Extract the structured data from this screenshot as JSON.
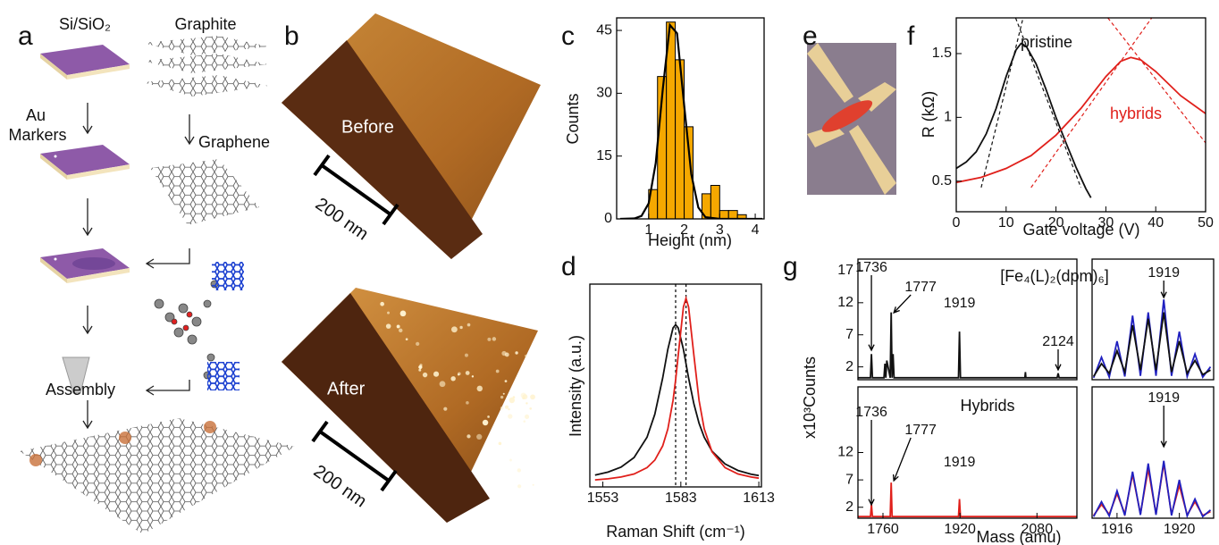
{
  "panel_labels": [
    "a",
    "b",
    "c",
    "d",
    "e",
    "f",
    "g"
  ],
  "diagram_a": {
    "substrate": "Si/SiO₂",
    "graphite": "Graphite",
    "au": "Au",
    "markers": "Markers",
    "graphene": "Graphene",
    "assembly": "Assembly"
  },
  "afm_b": {
    "before": "Before",
    "after": "After",
    "scale_bar": "200 nm"
  },
  "chart_data": [
    {
      "type": "histogram",
      "xlabel": "Height (nm)",
      "ylabel": "Counts",
      "bins": [
        1,
        1.25,
        1.5,
        1.75,
        2,
        2.25,
        2.5,
        2.75,
        3,
        3.25,
        3.5,
        3.75,
        4
      ],
      "values": [
        7,
        34,
        47,
        38,
        22,
        0,
        6,
        8,
        2,
        2,
        1,
        0
      ],
      "color": "#f5a800",
      "fit": {
        "x": [
          0.2,
          0.6,
          0.8,
          1.0,
          1.2,
          1.4,
          1.6,
          1.8,
          2.0,
          2.2,
          2.4,
          2.6,
          3.0,
          4.2
        ],
        "values": [
          0,
          0.1,
          0.7,
          3.7,
          13.3,
          31.1,
          46.3,
          44.3,
          27.2,
          10.7,
          2.7,
          0.4,
          0,
          0
        ],
        "color": "#000000"
      },
      "xlim": [
        0.1,
        4.25
      ],
      "ylim": [
        0,
        48
      ],
      "xticks": [
        1,
        2,
        3,
        4
      ],
      "yticks": [
        0,
        15,
        30,
        45
      ]
    },
    {
      "type": "line",
      "xlabel": "Raman Shift (cm⁻¹)",
      "ylabel": "Intensity (a.u.)",
      "series": [
        {
          "color": "#111111",
          "x": [
            1550,
            1555,
            1560,
            1565,
            1570,
            1573,
            1576,
            1578,
            1580,
            1581,
            1582,
            1584,
            1585,
            1586,
            1588,
            1590,
            1592,
            1595,
            1600,
            1605,
            1610,
            1613
          ],
          "values": [
            0.058,
            0.073,
            0.098,
            0.145,
            0.245,
            0.358,
            0.537,
            0.679,
            0.784,
            0.8,
            0.784,
            0.679,
            0.608,
            0.537,
            0.41,
            0.314,
            0.245,
            0.176,
            0.113,
            0.081,
            0.063,
            0.056
          ]
        },
        {
          "color": "#e0201b",
          "x": [
            1550,
            1555,
            1560,
            1565,
            1570,
            1573,
            1576,
            1578,
            1580,
            1581,
            1582,
            1584,
            1585,
            1586,
            1588,
            1590,
            1592,
            1595,
            1600,
            1605,
            1610,
            1613
          ],
          "values": [
            0.035,
            0.04,
            0.049,
            0.064,
            0.095,
            0.132,
            0.202,
            0.286,
            0.427,
            0.528,
            0.65,
            0.887,
            0.93,
            0.887,
            0.65,
            0.427,
            0.286,
            0.173,
            0.095,
            0.064,
            0.049,
            0.043
          ]
        }
      ],
      "reference_lines": [
        1581,
        1585
      ],
      "xlim": [
        1548,
        1614
      ],
      "ylim": [
        0,
        1
      ],
      "xticks": [
        1553,
        1583,
        1613
      ]
    },
    {
      "type": "line",
      "xlabel": "Gate voltage (V)",
      "ylabel": "R (kΩ)",
      "series": [
        {
          "name": "pristine",
          "color": "#111111",
          "x": [
            0,
            2,
            4,
            6,
            8,
            10,
            12,
            13,
            14,
            16,
            18,
            20,
            22,
            24,
            26,
            27
          ],
          "values": [
            0.6,
            0.65,
            0.73,
            0.87,
            1.07,
            1.32,
            1.53,
            1.58,
            1.56,
            1.42,
            1.22,
            1.0,
            0.8,
            0.61,
            0.44,
            0.37
          ]
        },
        {
          "name": "hybrids",
          "color": "#e0201b",
          "x": [
            0,
            5,
            10,
            15,
            20,
            25,
            30,
            33,
            35,
            37,
            40,
            45,
            50
          ],
          "values": [
            0.49,
            0.53,
            0.6,
            0.7,
            0.86,
            1.07,
            1.32,
            1.44,
            1.47,
            1.45,
            1.36,
            1.17,
            1.03
          ]
        },
        {
          "color": "#111111",
          "dashed": true,
          "x": [
            5,
            13.4
          ],
          "values": [
            0.45,
            1.78
          ]
        },
        {
          "color": "#111111",
          "dashed": true,
          "x": [
            11.9,
            25
          ],
          "values": [
            1.78,
            0.45
          ]
        },
        {
          "color": "#e0201b",
          "dashed": true,
          "x": [
            15,
            39.2
          ],
          "values": [
            0.45,
            1.78
          ]
        },
        {
          "color": "#e0201b",
          "dashed": true,
          "x": [
            30.4,
            50
          ],
          "values": [
            1.78,
            0.8
          ]
        }
      ],
      "xlim": [
        0,
        50
      ],
      "ylim": [
        0.26,
        1.78
      ],
      "xticks": [
        0,
        10,
        20,
        30,
        40,
        50
      ],
      "yticks": [
        0.5,
        1,
        1.5
      ]
    },
    {
      "type": "line",
      "title": "[Fe₄(L)₂(dpm)₆]",
      "ylabel": "x10³Counts",
      "series": [
        {
          "color": "#111111",
          "x": [
            1708,
            1734,
            1736,
            1738,
            1762,
            1764,
            1766,
            1768,
            1775,
            1777,
            1779,
            1781,
            1783,
            1917,
            1919,
            1921,
            2055,
            2056,
            2057,
            2122,
            2124,
            2126,
            2163
          ],
          "values": [
            0.3,
            0.3,
            4,
            0.3,
            0.3,
            2.5,
            0.3,
            3,
            0.3,
            10.5,
            0.3,
            4,
            0.3,
            0.3,
            7.5,
            0.3,
            0.3,
            1.2,
            0.3,
            0.3,
            1,
            0.3,
            0.3
          ]
        }
      ],
      "peaks": [
        1736,
        1777,
        1919,
        2124
      ],
      "xlim": [
        1708,
        2163
      ],
      "ylim": [
        0,
        18.8
      ],
      "yticks": [
        2,
        7,
        12,
        17
      ]
    },
    {
      "type": "line",
      "series": [
        {
          "color": "#2020c0",
          "x": [
            1914.5,
            1915,
            1915.5,
            1916,
            1916.5,
            1917,
            1917.5,
            1918,
            1918.5,
            1919,
            1919.5,
            1920,
            1920.5,
            1921,
            1921.5,
            1922
          ],
          "values": [
            0.3,
            3.5,
            0.4,
            6,
            0.5,
            10,
            0.6,
            10.5,
            0.6,
            12.5,
            0.6,
            7.5,
            0.5,
            4,
            0.4,
            2
          ]
        },
        {
          "color": "#111111",
          "x": [
            1914.5,
            1915,
            1915.5,
            1916,
            1916.5,
            1917,
            1917.5,
            1918,
            1918.5,
            1919,
            1919.5,
            1920,
            1920.5,
            1921,
            1921.5,
            1922
          ],
          "values": [
            0.5,
            2.5,
            1,
            4.5,
            1.2,
            8.5,
            1.5,
            9.5,
            1.5,
            10.5,
            1.2,
            6,
            1,
            3,
            0.8,
            1.5
          ]
        }
      ],
      "peaks": [
        1919
      ],
      "xlim": [
        1914.4,
        1922.2
      ],
      "ylim": [
        0,
        18.8
      ]
    },
    {
      "type": "line",
      "title": "Hybrids",
      "xlabel": "Mass (amu)",
      "series": [
        {
          "color": "#e0201b",
          "x": [
            1708,
            1734,
            1736,
            1738,
            1775,
            1777,
            1779,
            1917,
            1919,
            1921,
            2163
          ],
          "values": [
            0.3,
            0.3,
            2.5,
            0.3,
            0.3,
            6.5,
            0.3,
            0.3,
            3.5,
            0.3,
            0.3
          ]
        }
      ],
      "peaks": [
        1736,
        1777,
        1919
      ],
      "xlim": [
        1708,
        2163
      ],
      "ylim": [
        0,
        24
      ],
      "xticks": [
        1760,
        1920,
        2080
      ],
      "yticks": [
        2,
        7,
        12
      ]
    },
    {
      "type": "line",
      "series": [
        {
          "color": "#e0201b",
          "x": [
            1914.5,
            1915,
            1915.5,
            1916,
            1916.5,
            1917,
            1917.5,
            1918,
            1918.5,
            1919,
            1919.5,
            1920,
            1920.5,
            1921,
            1921.5,
            1922
          ],
          "values": [
            0.5,
            2.5,
            0.7,
            4.5,
            0.8,
            8,
            0.8,
            9,
            0.8,
            10,
            0.7,
            6,
            0.6,
            3,
            0.5,
            1.2
          ]
        },
        {
          "color": "#2020c0",
          "x": [
            1914.5,
            1915,
            1915.5,
            1916,
            1916.5,
            1917,
            1917.5,
            1918,
            1918.5,
            1919,
            1919.5,
            1920,
            1920.5,
            1921,
            1921.5,
            1922
          ],
          "values": [
            0.3,
            3,
            0.4,
            5,
            0.5,
            8.5,
            0.6,
            10,
            0.6,
            10.5,
            0.5,
            7,
            0.4,
            3.5,
            0.3,
            1.5
          ]
        }
      ],
      "peaks": [
        1919
      ],
      "xlim": [
        1914.4,
        1922.2
      ],
      "ylim": [
        0,
        24
      ],
      "xticks": [
        1916,
        1920
      ]
    }
  ]
}
